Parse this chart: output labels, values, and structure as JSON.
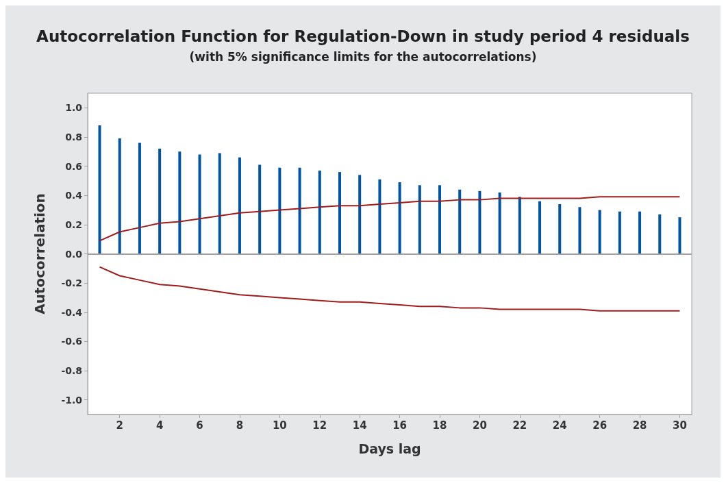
{
  "chart_data": {
    "type": "bar",
    "title": "Autocorrelation Function for Regulation-Down in study period 4 residuals",
    "subtitle": "(with 5% significance limits for the autocorrelations)",
    "xlabel": "Days lag",
    "ylabel": "Autocorrelation",
    "x": [
      1,
      2,
      3,
      4,
      5,
      6,
      7,
      8,
      9,
      10,
      11,
      12,
      13,
      14,
      15,
      16,
      17,
      18,
      19,
      20,
      21,
      22,
      23,
      24,
      25,
      26,
      27,
      28,
      29,
      30
    ],
    "series": [
      {
        "color": "#0054a6",
        "values": [
          0.88,
          0.79,
          0.76,
          0.72,
          0.7,
          0.68,
          0.69,
          0.66,
          0.61,
          0.59,
          0.59,
          0.57,
          0.56,
          0.54,
          0.51,
          0.49,
          0.47,
          0.47,
          0.44,
          0.43,
          0.42,
          0.39,
          0.36,
          0.34,
          0.32,
          0.3,
          0.29,
          0.29,
          0.27,
          0.25
        ]
      },
      {
        "type": "line",
        "color": "#a01c1c",
        "values": [
          0.09,
          0.15,
          0.18,
          0.21,
          0.22,
          0.24,
          0.26,
          0.28,
          0.29,
          0.3,
          0.31,
          0.32,
          0.33,
          0.33,
          0.34,
          0.35,
          0.36,
          0.36,
          0.37,
          0.37,
          0.38,
          0.38,
          0.38,
          0.38,
          0.38,
          0.39,
          0.39,
          0.39,
          0.39,
          0.39
        ]
      },
      {
        "type": "line",
        "color": "#a01c1c",
        "values": [
          -0.09,
          -0.15,
          -0.18,
          -0.21,
          -0.22,
          -0.24,
          -0.26,
          -0.28,
          -0.29,
          -0.3,
          -0.31,
          -0.32,
          -0.33,
          -0.33,
          -0.34,
          -0.35,
          -0.36,
          -0.36,
          -0.37,
          -0.37,
          -0.38,
          -0.38,
          -0.38,
          -0.38,
          -0.38,
          -0.39,
          -0.39,
          -0.39,
          -0.39,
          -0.39
        ]
      }
    ],
    "xlim": [
      0.4,
      30.6
    ],
    "xticks": [
      2,
      4,
      6,
      8,
      10,
      12,
      14,
      16,
      18,
      20,
      22,
      24,
      26,
      28,
      30
    ],
    "ylim": [
      -1.1,
      1.1
    ],
    "yticks": [
      {
        "value": -1,
        "label": "-1.0"
      },
      -0.8,
      -0.6,
      -0.4,
      -0.2,
      {
        "value": 0,
        "label": "0.0"
      },
      0.2,
      0.4,
      0.6,
      0.8,
      {
        "value": 1,
        "label": "1.0"
      }
    ],
    "ref_lines": [
      {
        "axis": "y",
        "value": 0,
        "color": "#a0a0a0"
      }
    ],
    "grid": false,
    "marker": "none",
    "line_style": "solid"
  }
}
